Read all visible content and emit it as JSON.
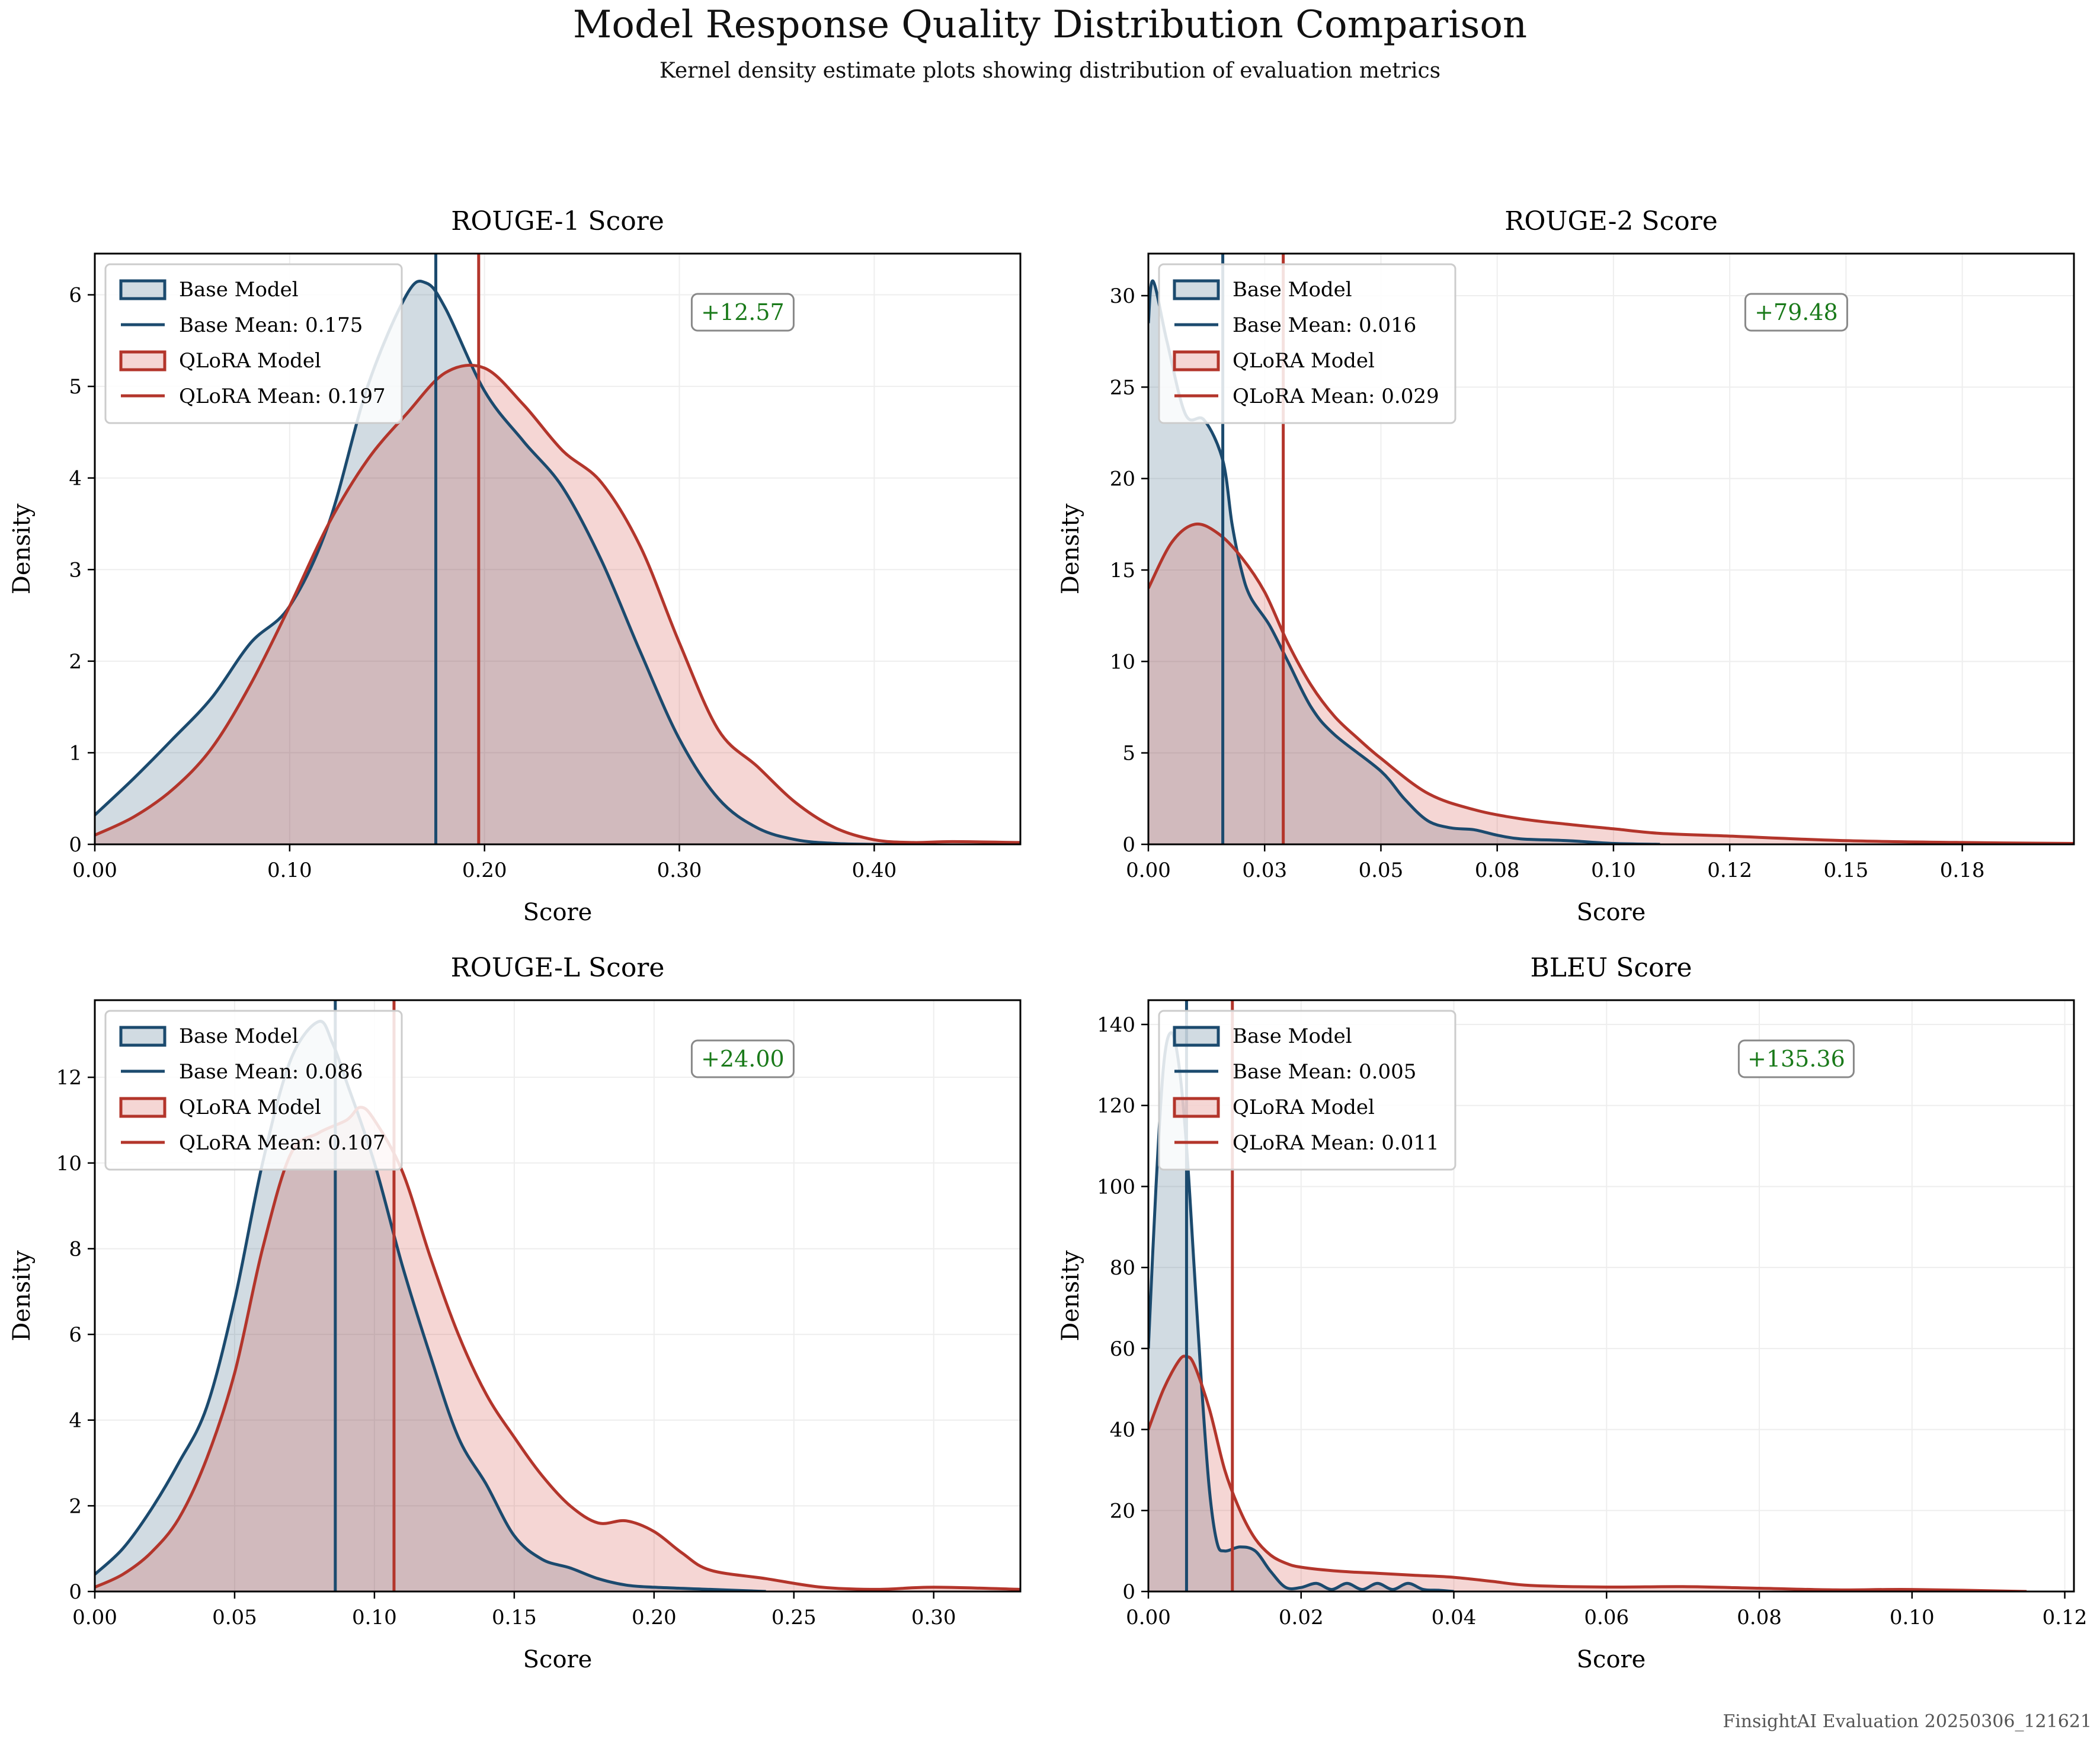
{
  "figure": {
    "title": "Model Response Quality Distribution Comparison",
    "subtitle": "Kernel density estimate plots showing distribution of evaluation metrics",
    "footer": "FinsightAI Evaluation 20250306_121621"
  },
  "colors": {
    "base": "#1b4a6e",
    "qlora": "#b3352b",
    "improvement": "#1a7a1a",
    "grid": "#eeeeee"
  },
  "chart_data": [
    {
      "type": "area",
      "title": "ROUGE-1 Score",
      "xlabel": "Score",
      "ylabel": "Density",
      "xlim": [
        0,
        0.475
      ],
      "ylim": [
        0,
        6.45
      ],
      "xticks": [
        0,
        0.1,
        0.2,
        0.3,
        0.4
      ],
      "xtick_labels": [
        "0.00",
        "0.10",
        "0.20",
        "0.30",
        "0.40"
      ],
      "yticks": [
        0,
        1,
        2,
        3,
        4,
        5,
        6
      ],
      "ytick_labels": [
        "0",
        "1",
        "2",
        "3",
        "4",
        "5",
        "6"
      ],
      "improvement": "+12.57",
      "legend": [
        "Base Model",
        "Base Mean: 0.175",
        "QLoRA Model",
        "QLoRA Mean: 0.197"
      ],
      "series": [
        {
          "name": "Base Model",
          "mean": 0.175,
          "x": [
            0,
            0.02,
            0.04,
            0.06,
            0.08,
            0.1,
            0.12,
            0.14,
            0.16,
            0.17,
            0.18,
            0.2,
            0.22,
            0.24,
            0.26,
            0.28,
            0.3,
            0.32,
            0.34,
            0.36,
            0.38,
            0.4,
            0.42
          ],
          "y": [
            0.32,
            0.72,
            1.15,
            1.6,
            2.2,
            2.6,
            3.5,
            5.0,
            6.0,
            6.13,
            5.85,
            4.95,
            4.4,
            3.9,
            3.1,
            2.1,
            1.15,
            0.5,
            0.18,
            0.05,
            0.01,
            0,
            0
          ]
        },
        {
          "name": "QLoRA Model",
          "mean": 0.197,
          "x": [
            0,
            0.02,
            0.04,
            0.06,
            0.08,
            0.1,
            0.12,
            0.14,
            0.16,
            0.18,
            0.2,
            0.22,
            0.24,
            0.26,
            0.28,
            0.3,
            0.32,
            0.34,
            0.36,
            0.38,
            0.4,
            0.42,
            0.44,
            0.475
          ],
          "y": [
            0.1,
            0.3,
            0.6,
            1.05,
            1.75,
            2.6,
            3.5,
            4.2,
            4.7,
            5.15,
            5.2,
            4.8,
            4.3,
            3.95,
            3.25,
            2.2,
            1.25,
            0.85,
            0.45,
            0.18,
            0.05,
            0.02,
            0.03,
            0.02
          ]
        }
      ]
    },
    {
      "type": "area",
      "title": "ROUGE-2 Score",
      "xlabel": "Score",
      "ylabel": "Density",
      "xlim": [
        0,
        0.199
      ],
      "ylim": [
        0,
        32.3
      ],
      "xticks": [
        0,
        0.025,
        0.05,
        0.075,
        0.1,
        0.125,
        0.15,
        0.175
      ],
      "xtick_labels": [
        "0.00",
        "0.03",
        "0.05",
        "0.08",
        "0.10",
        "0.12",
        "0.15",
        "0.18"
      ],
      "yticks": [
        0,
        5,
        10,
        15,
        20,
        25,
        30
      ],
      "ytick_labels": [
        "0",
        "5",
        "10",
        "15",
        "20",
        "25",
        "30"
      ],
      "improvement": "+79.48",
      "legend": [
        "Base Model",
        "Base Mean: 0.016",
        "QLoRA Model",
        "QLoRA Mean: 0.029"
      ],
      "series": [
        {
          "name": "Base Model",
          "mean": 0.016,
          "x": [
            0,
            0.001,
            0.004,
            0.008,
            0.012,
            0.016,
            0.018,
            0.02,
            0.022,
            0.026,
            0.03,
            0.035,
            0.04,
            0.05,
            0.055,
            0.06,
            0.065,
            0.07,
            0.075,
            0.08,
            0.09,
            0.1,
            0.11
          ],
          "y": [
            28.5,
            30.8,
            27.5,
            23.5,
            23.2,
            21.0,
            17.5,
            15.0,
            13.5,
            12.0,
            10.0,
            7.5,
            6.0,
            4.0,
            2.5,
            1.3,
            0.9,
            0.8,
            0.5,
            0.3,
            0.2,
            0.05,
            0
          ]
        },
        {
          "name": "QLoRA Model",
          "mean": 0.029,
          "x": [
            0,
            0.005,
            0.01,
            0.015,
            0.02,
            0.025,
            0.03,
            0.035,
            0.04,
            0.045,
            0.05,
            0.06,
            0.07,
            0.08,
            0.09,
            0.1,
            0.11,
            0.125,
            0.15,
            0.175,
            0.199
          ],
          "y": [
            14.0,
            16.5,
            17.5,
            17.0,
            15.7,
            13.8,
            11.0,
            8.7,
            7.0,
            5.8,
            4.7,
            2.8,
            1.9,
            1.4,
            1.1,
            0.85,
            0.6,
            0.45,
            0.2,
            0.1,
            0.05
          ]
        }
      ]
    },
    {
      "type": "area",
      "title": "ROUGE-L Score",
      "xlabel": "Score",
      "ylabel": "Density",
      "xlim": [
        0,
        0.331
      ],
      "ylim": [
        0,
        13.8
      ],
      "xticks": [
        0,
        0.05,
        0.1,
        0.15,
        0.2,
        0.25,
        0.3
      ],
      "xtick_labels": [
        "0.00",
        "0.05",
        "0.10",
        "0.15",
        "0.20",
        "0.25",
        "0.30"
      ],
      "yticks": [
        0,
        2,
        4,
        6,
        8,
        10,
        12
      ],
      "ytick_labels": [
        "0",
        "2",
        "4",
        "6",
        "8",
        "10",
        "12"
      ],
      "improvement": "+24.00",
      "legend": [
        "Base Model",
        "Base Mean: 0.086",
        "QLoRA Model",
        "QLoRA Mean: 0.107"
      ],
      "series": [
        {
          "name": "Base Model",
          "mean": 0.086,
          "x": [
            0,
            0.01,
            0.02,
            0.03,
            0.04,
            0.05,
            0.06,
            0.07,
            0.08,
            0.085,
            0.09,
            0.1,
            0.11,
            0.12,
            0.13,
            0.14,
            0.15,
            0.16,
            0.17,
            0.18,
            0.19,
            0.2,
            0.22,
            0.24
          ],
          "y": [
            0.4,
            1.0,
            1.9,
            3.0,
            4.3,
            6.8,
            10.0,
            12.4,
            13.3,
            12.8,
            11.9,
            10.0,
            7.6,
            5.5,
            3.6,
            2.5,
            1.3,
            0.75,
            0.55,
            0.3,
            0.15,
            0.1,
            0.05,
            0
          ]
        },
        {
          "name": "QLoRA Model",
          "mean": 0.107,
          "x": [
            0,
            0.01,
            0.02,
            0.03,
            0.04,
            0.05,
            0.06,
            0.07,
            0.08,
            0.09,
            0.095,
            0.1,
            0.11,
            0.12,
            0.13,
            0.14,
            0.15,
            0.16,
            0.17,
            0.18,
            0.19,
            0.2,
            0.21,
            0.22,
            0.24,
            0.26,
            0.28,
            0.3,
            0.331
          ],
          "y": [
            0.1,
            0.4,
            0.9,
            1.7,
            3.1,
            5.1,
            8.0,
            10.2,
            10.7,
            11.0,
            11.3,
            11.0,
            9.8,
            7.8,
            6.0,
            4.6,
            3.6,
            2.7,
            2.0,
            1.6,
            1.65,
            1.4,
            0.9,
            0.5,
            0.3,
            0.1,
            0.05,
            0.1,
            0.05
          ]
        }
      ]
    },
    {
      "type": "area",
      "title": "BLEU Score",
      "xlabel": "Score",
      "ylabel": "Density",
      "xlim": [
        0,
        0.1212
      ],
      "ylim": [
        0,
        146
      ],
      "xticks": [
        0,
        0.02,
        0.04,
        0.06,
        0.08,
        0.1,
        0.12
      ],
      "xtick_labels": [
        "0.00",
        "0.02",
        "0.04",
        "0.06",
        "0.08",
        "0.10",
        "0.12"
      ],
      "yticks": [
        0,
        20,
        40,
        60,
        80,
        100,
        120,
        140
      ],
      "ytick_labels": [
        "0",
        "20",
        "40",
        "60",
        "80",
        "100",
        "120",
        "140"
      ],
      "improvement": "+135.36",
      "legend": [
        "Base Model",
        "Base Mean: 0.005",
        "QLoRA Model",
        "QLoRA Mean: 0.011"
      ],
      "series": [
        {
          "name": "Base Model",
          "mean": 0.005,
          "x": [
            0,
            0.001,
            0.002,
            0.003,
            0.004,
            0.005,
            0.006,
            0.007,
            0.008,
            0.009,
            0.01,
            0.012,
            0.014,
            0.016,
            0.018,
            0.02,
            0.022,
            0.024,
            0.026,
            0.028,
            0.03,
            0.032,
            0.034,
            0.036,
            0.038,
            0.04
          ],
          "y": [
            60,
            100,
            130,
            138,
            130,
            110,
            80,
            50,
            25,
            12,
            10,
            11,
            10,
            5,
            1,
            1,
            2,
            0.5,
            2,
            0.5,
            2,
            0.5,
            2,
            0.5,
            0.3,
            0
          ]
        },
        {
          "name": "QLoRA Model",
          "mean": 0.011,
          "x": [
            0,
            0.002,
            0.004,
            0.005,
            0.006,
            0.008,
            0.01,
            0.012,
            0.014,
            0.016,
            0.018,
            0.02,
            0.025,
            0.03,
            0.035,
            0.04,
            0.045,
            0.05,
            0.06,
            0.07,
            0.08,
            0.09,
            0.1,
            0.115
          ],
          "y": [
            40,
            50,
            57,
            58,
            56,
            45,
            30,
            20,
            13,
            9,
            7,
            6,
            5,
            4.5,
            4,
            3.5,
            2.5,
            1.5,
            1.1,
            1.2,
            0.8,
            0.4,
            0.5,
            0
          ]
        }
      ]
    }
  ]
}
